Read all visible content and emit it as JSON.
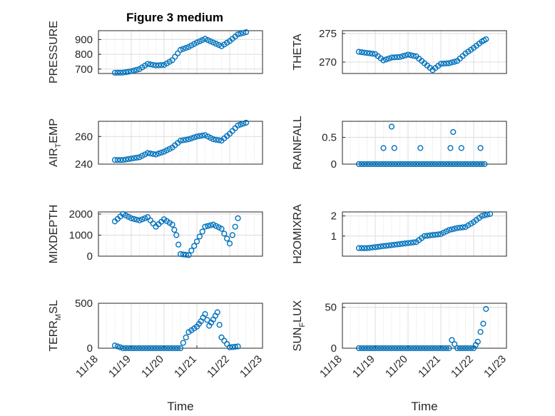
{
  "figure": {
    "title": "Figure 3 medium"
  },
  "style": {
    "marker_color": "#0072BD",
    "grid_color": "#dcdcdc",
    "axis_color": "#262626"
  },
  "chart_data": [
    {
      "type": "scatter",
      "ylabel": "PRESSURE",
      "yticks": [
        "700",
        "800",
        "900"
      ],
      "ylim": [
        670,
        960
      ],
      "xlim": [
        "11/18 12:00",
        "11/23 00:00"
      ],
      "grid": true,
      "x": [
        "11/18 12:00",
        "11/18 18:00",
        "11/19 00:00",
        "11/19 06:00",
        "11/19 12:00",
        "11/19 18:00",
        "11/20 00:00",
        "11/20 06:00",
        "11/20 12:00",
        "11/20 18:00",
        "11/21 00:00",
        "11/21 06:00",
        "11/21 12:00",
        "11/21 18:00",
        "11/22 00:00",
        "11/22 06:00",
        "11/22 12:00"
      ],
      "y": [
        675,
        676,
        685,
        700,
        735,
        725,
        728,
        760,
        830,
        850,
        880,
        905,
        880,
        855,
        890,
        935,
        950
      ]
    },
    {
      "type": "scatter",
      "ylabel": "THETA",
      "yticks": [
        "270",
        "275"
      ],
      "ylim": [
        268,
        275.5
      ],
      "xlim": [
        "11/18 12:00",
        "11/23 00:00"
      ],
      "grid": true,
      "x": [
        "11/18 12:00",
        "11/18 18:00",
        "11/19 00:00",
        "11/19 06:00",
        "11/19 12:00",
        "11/19 18:00",
        "11/20 00:00",
        "11/20 06:00",
        "11/20 12:00",
        "11/20 18:00",
        "11/21 00:00",
        "11/21 06:00",
        "11/21 12:00",
        "11/21 18:00",
        "11/22 00:00",
        "11/22 06:00",
        "11/22 09:00"
      ],
      "y": [
        271.8,
        271.6,
        271.4,
        270.3,
        270.8,
        270.9,
        271.3,
        271.0,
        269.8,
        268.6,
        269.7,
        269.8,
        270.2,
        271.5,
        272.5,
        273.6,
        274.0
      ]
    },
    {
      "type": "scatter",
      "ylabel": "AIR_TEMP",
      "ylabel_parts": {
        "before": "AIR",
        "sub": "T",
        "after": "EMP"
      },
      "yticks": [
        "240",
        "260"
      ],
      "ylim": [
        240,
        271
      ],
      "xlim": [
        "11/18 12:00",
        "11/23 00:00"
      ],
      "grid": true,
      "x": [
        "11/18 12:00",
        "11/18 18:00",
        "11/19 00:00",
        "11/19 06:00",
        "11/19 12:00",
        "11/19 18:00",
        "11/20 00:00",
        "11/20 06:00",
        "11/20 12:00",
        "11/20 18:00",
        "11/21 00:00",
        "11/21 06:00",
        "11/21 12:00",
        "11/21 18:00",
        "11/22 00:00",
        "11/22 06:00",
        "11/22 12:00"
      ],
      "y": [
        243,
        243,
        244,
        245,
        248,
        247,
        249,
        252,
        257,
        258,
        260,
        261,
        258,
        257,
        262,
        268,
        270
      ]
    },
    {
      "type": "scatter",
      "ylabel": "RAINFALL",
      "yticks": [
        "0",
        "0.5"
      ],
      "ylim": [
        0,
        0.8
      ],
      "xlim": [
        "11/18 12:00",
        "11/23 00:00"
      ],
      "grid": true,
      "x": [
        "11/18 12:00",
        "11/19 00:00",
        "11/19 06:00",
        "11/19 12:00",
        "11/19 15:00",
        "11/20 00:00",
        "11/20 06:00",
        "11/20 12:00",
        "11/21 00:00",
        "11/21 12:00",
        "11/21 15:00",
        "11/21 18:00",
        "11/22 06:00",
        "11/22 09:00",
        "11/19 06:00",
        "11/19 14:00",
        "11/20 09:00",
        "11/21 07:00",
        "11/21 15:00",
        "11/22 05:00",
        "11/19 12:00",
        "11/21 09:00"
      ],
      "y": [
        0,
        0,
        0,
        0,
        0,
        0,
        0,
        0,
        0,
        0,
        0,
        0,
        0,
        0,
        0.3,
        0.3,
        0.3,
        0.3,
        0.3,
        0.3,
        0.7,
        0.6
      ]
    },
    {
      "type": "scatter",
      "ylabel": "MIXDEPTH",
      "yticks": [
        "0",
        "1000",
        "2000"
      ],
      "ylim": [
        0,
        2100
      ],
      "xlim": [
        "11/18 12:00",
        "11/23 00:00"
      ],
      "grid": true,
      "x": [
        "11/18 12:00",
        "11/18 18:00",
        "11/19 00:00",
        "11/19 06:00",
        "11/19 12:00",
        "11/19 18:00",
        "11/20 00:00",
        "11/20 06:00",
        "11/20 09:00",
        "11/20 12:00",
        "11/20 18:00",
        "11/21 00:00",
        "11/21 06:00",
        "11/21 12:00",
        "11/21 18:00",
        "11/22 00:00",
        "11/22 06:00"
      ],
      "y": [
        1650,
        2000,
        1800,
        1700,
        1850,
        1400,
        1750,
        1500,
        1000,
        100,
        50,
        700,
        1400,
        1500,
        1300,
        600,
        1800
      ]
    },
    {
      "type": "scatter",
      "ylabel": "H2OMIXRA",
      "yticks": [
        "1",
        "2"
      ],
      "ylim": [
        0,
        2.2
      ],
      "xlim": [
        "11/18 12:00",
        "11/23 00:00"
      ],
      "grid": true,
      "x": [
        "11/18 12:00",
        "11/18 18:00",
        "11/19 00:00",
        "11/19 06:00",
        "11/19 12:00",
        "11/19 18:00",
        "11/20 00:00",
        "11/20 06:00",
        "11/20 12:00",
        "11/20 18:00",
        "11/21 00:00",
        "11/21 06:00",
        "11/21 12:00",
        "11/21 18:00",
        "11/22 00:00",
        "11/22 06:00",
        "11/22 12:00"
      ],
      "y": [
        0.4,
        0.4,
        0.45,
        0.5,
        0.55,
        0.6,
        0.65,
        0.7,
        1.0,
        1.05,
        1.1,
        1.3,
        1.4,
        1.45,
        1.7,
        2.0,
        2.1
      ]
    },
    {
      "type": "scatter",
      "ylabel": "TERR_MSL",
      "ylabel_parts": {
        "before": "TERR",
        "sub": "M",
        "after": "SL"
      },
      "yticks": [
        "0",
        "500"
      ],
      "ylim": [
        0,
        500
      ],
      "xlim": [
        "11/18 00:00",
        "11/23 00:00"
      ],
      "xticks": [
        "11/18",
        "11/19",
        "11/20",
        "11/21",
        "11/22",
        "11/23"
      ],
      "xlabel": "Time",
      "grid": true,
      "x": [
        "11/18 12:00",
        "11/18 18:00",
        "11/19 00:00",
        "11/19 06:00",
        "11/19 12:00",
        "11/19 18:00",
        "11/20 00:00",
        "11/20 06:00",
        "11/20 12:00",
        "11/20 18:00",
        "11/21 00:00",
        "11/21 03:00",
        "11/21 06:00",
        "11/21 09:00",
        "11/21 12:00",
        "11/21 15:00",
        "11/21 18:00",
        "11/22 00:00",
        "11/22 06:00"
      ],
      "y": [
        30,
        0,
        0,
        0,
        0,
        0,
        0,
        0,
        0,
        180,
        240,
        300,
        380,
        250,
        320,
        400,
        120,
        10,
        20
      ]
    },
    {
      "type": "scatter",
      "ylabel": "SUN_FLUX",
      "ylabel_parts": {
        "before": "SUN",
        "sub": "F",
        "after": "LUX"
      },
      "yticks": [
        "0",
        "50"
      ],
      "ylim": [
        0,
        55
      ],
      "xlim": [
        "11/18 00:00",
        "11/23 00:00"
      ],
      "xticks": [
        "11/18",
        "11/19",
        "11/20",
        "11/21",
        "11/22",
        "11/23"
      ],
      "xlabel": "Time",
      "grid": true,
      "x": [
        "11/18 12:00",
        "11/19 00:00",
        "11/19 12:00",
        "11/20 00:00",
        "11/20 12:00",
        "11/21 00:00",
        "11/21 06:00",
        "11/21 08:00",
        "11/21 12:00",
        "11/22 00:00",
        "11/22 03:00",
        "11/22 05:00",
        "11/22 07:00",
        "11/22 09:00"
      ],
      "y": [
        0,
        0,
        0,
        0,
        0,
        0,
        0,
        10,
        0,
        0,
        8,
        20,
        30,
        48
      ]
    }
  ]
}
